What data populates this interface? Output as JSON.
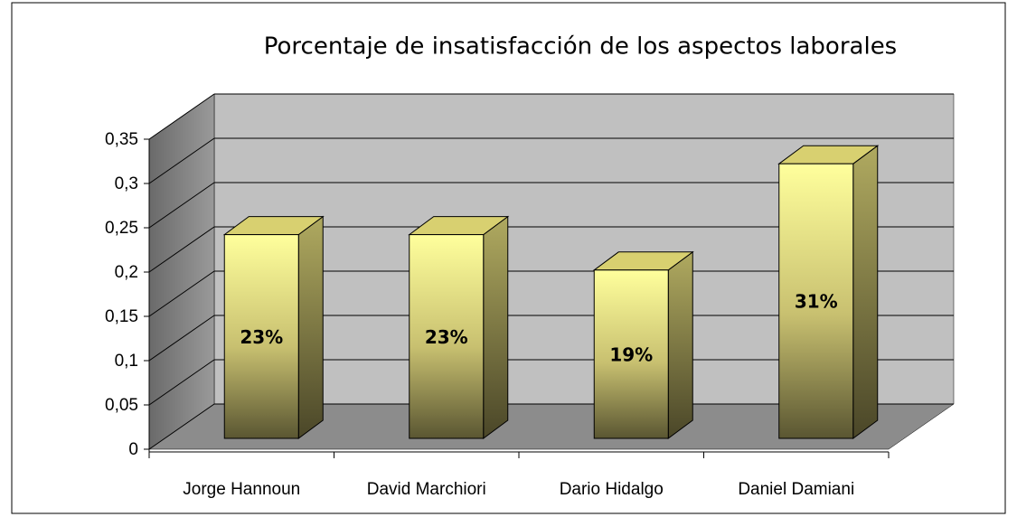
{
  "chart_data": {
    "type": "bar3d",
    "title": "Porcentaje de insatisfacción de los aspectos laborales",
    "categories": [
      "Jorge Hannoun",
      "David Marchiori",
      "Dario Hidalgo",
      "Daniel Damiani"
    ],
    "values": [
      0.23,
      0.23,
      0.19,
      0.31
    ],
    "value_labels": [
      "23%",
      "23%",
      "19%",
      "31%"
    ],
    "color": "#ffff99",
    "ylim": [
      0,
      0.35
    ],
    "yticks": [
      0,
      {
        "value": 0.05,
        "label": "0,05"
      },
      {
        "value": 0.1,
        "label": "0,1"
      },
      {
        "value": 0.15,
        "label": "0,15"
      },
      {
        "value": 0.2,
        "label": "0,2"
      },
      {
        "value": 0.25,
        "label": "0,25"
      },
      {
        "value": 0.3,
        "label": "0,3"
      },
      {
        "value": 0.35,
        "label": "0,35"
      }
    ],
    "grid": true
  }
}
